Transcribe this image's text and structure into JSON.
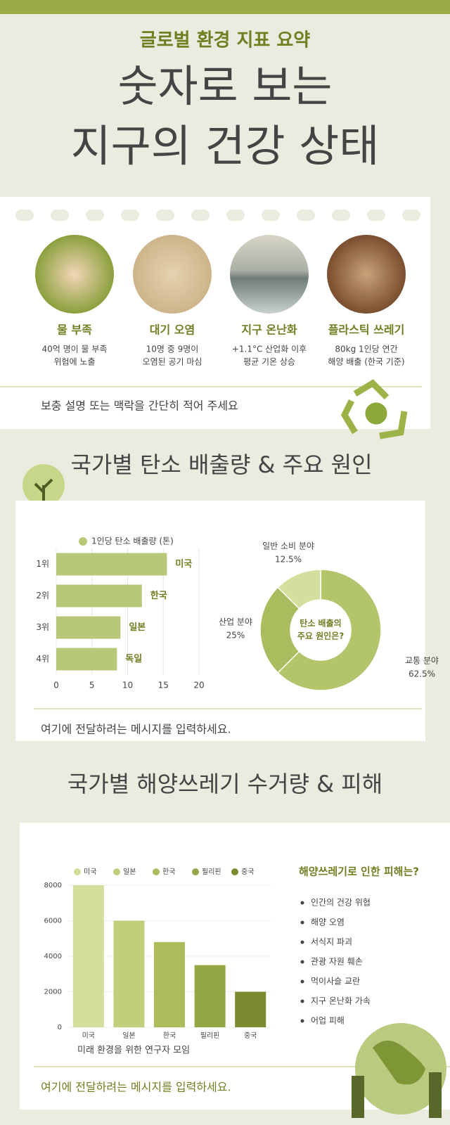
{
  "header": {
    "subtitle": "글로벌 환경 지표 요약",
    "title_lines": [
      "숫자로 보는",
      "지구의 건강 상태"
    ]
  },
  "cards": [
    {
      "title": "물 부족",
      "lines": [
        "40억 명이 물 부족",
        "위험에 노출"
      ]
    },
    {
      "title": "대기 오염",
      "lines": [
        "10명 중 9명이",
        "오염된 공기 마심"
      ]
    },
    {
      "title": "지구 온난화",
      "lines": [
        "+1.1°C 산업화 이후",
        "평균 기온 상승"
      ]
    },
    {
      "title": "플라스틱 쓰레기",
      "lines": [
        "80kg 1인당 연간",
        "해양 배출 (한국 기준)"
      ]
    }
  ],
  "note1": "보충 설명 또는 맥락을 간단히 적어 주세요",
  "section2": {
    "heading": "국가별 탄소 배출량 & 주요 원인",
    "message": "여기에 전달하려는 메시지를 입력하세요."
  },
  "section3": {
    "heading": "국가별 해양쓰레기 수거량 & 피해",
    "source": "미래 환경을 위한 연구자 모임",
    "damage_title": "해양쓰레기로 인한 피해는?",
    "damages": [
      "인간의 건강 위협",
      "해양 오염",
      "서식지 파괴",
      "관광 자원 훼손",
      "먹이사슬 교란",
      "지구 온난화 가속",
      "어업 피해"
    ],
    "message": "여기에 전달하려는 메시지를 입력하세요."
  },
  "chart_data": [
    {
      "type": "bar",
      "orientation": "horizontal",
      "categories": [
        "1위",
        "2위",
        "3위",
        "4위"
      ],
      "series": [
        {
          "name": "1인당 탄소 배출량 (톤)",
          "color": "#b7c878",
          "values": [
            15.5,
            12,
            9,
            8.5
          ]
        }
      ],
      "bar_labels": [
        "미국",
        "한국",
        "일본",
        "독일"
      ],
      "xlim": [
        0,
        20
      ],
      "xticks": [
        0,
        5,
        10,
        15,
        20
      ],
      "grid": true
    },
    {
      "type": "pie",
      "categories": [
        "교통 분야",
        "산업 분야",
        "일반 소비 분야"
      ],
      "values": [
        62.5,
        25,
        12.5
      ],
      "value_labels": [
        "62.5%",
        "25%",
        "12.5%"
      ],
      "colors": [
        "#b2c56a",
        "#a9bd5f",
        "#d3df9e"
      ],
      "center_text": [
        "탄소 배출의",
        "주요 원인은?"
      ]
    },
    {
      "type": "bar",
      "orientation": "vertical",
      "categories": [
        "미국",
        "일본",
        "한국",
        "필리핀",
        "중국"
      ],
      "values": [
        8000,
        6000,
        4800,
        3500,
        2000
      ],
      "colors": [
        "#d3df9a",
        "#bfcf7b",
        "#abbd5b",
        "#93a845",
        "#7a8b31"
      ],
      "ylim": [
        0,
        8000
      ],
      "yticks": [
        0,
        2000,
        4000,
        6000,
        8000
      ],
      "grid": true
    }
  ]
}
